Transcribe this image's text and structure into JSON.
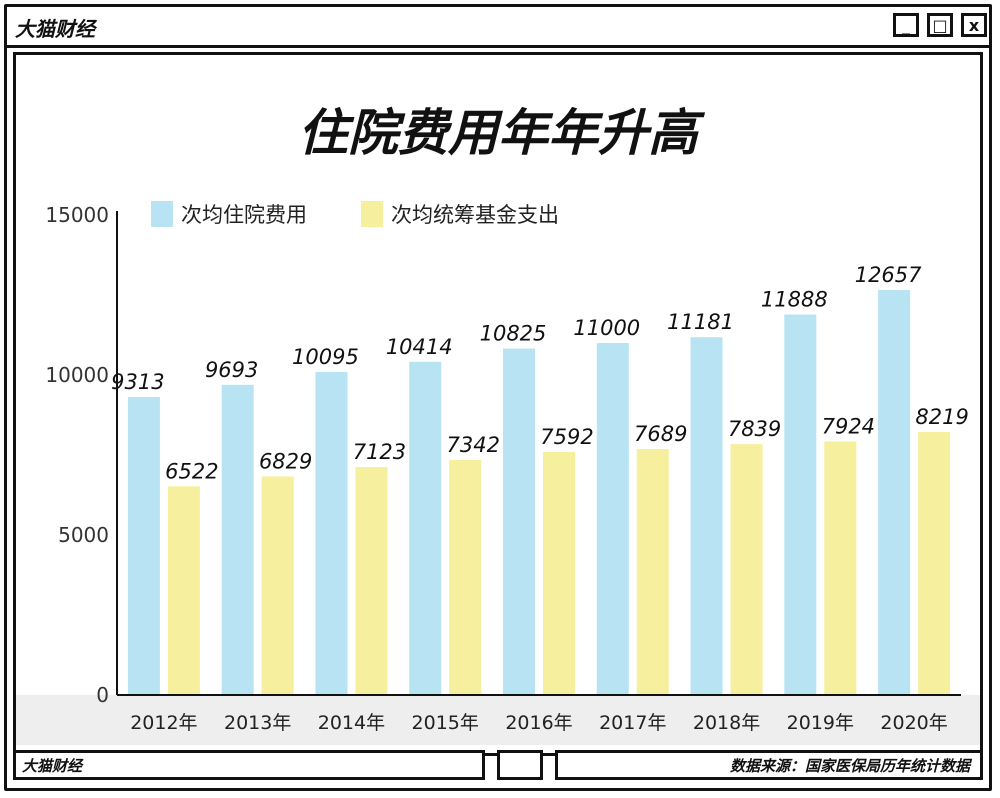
{
  "window": {
    "brand": "大猫财经",
    "footer_brand": "大猫财经",
    "source": "数据来源：国家医保局历年统计数据",
    "controls": [
      "_",
      "□",
      "x"
    ]
  },
  "colors": {
    "series_a": "#b8e3f2",
    "series_b": "#f5ef9e",
    "frame": "#111111",
    "band": "#eeeeee"
  },
  "chart_data": {
    "type": "bar",
    "title": "住院费用年年升高",
    "categories": [
      "2012年",
      "2013年",
      "2014年",
      "2015年",
      "2016年",
      "2017年",
      "2018年",
      "2019年",
      "2020年"
    ],
    "series": [
      {
        "name": "次均住院费用",
        "values": [
          9313,
          9693,
          10095,
          10414,
          10825,
          11000,
          11181,
          11888,
          12657
        ]
      },
      {
        "name": "次均统筹基金支出",
        "values": [
          6522,
          6829,
          7123,
          7342,
          7592,
          7689,
          7839,
          7924,
          8219
        ]
      }
    ],
    "ylim": [
      0,
      15000
    ],
    "yticks": [
      0,
      5000,
      10000,
      15000
    ],
    "legend_position": "top-left",
    "grid": false
  }
}
